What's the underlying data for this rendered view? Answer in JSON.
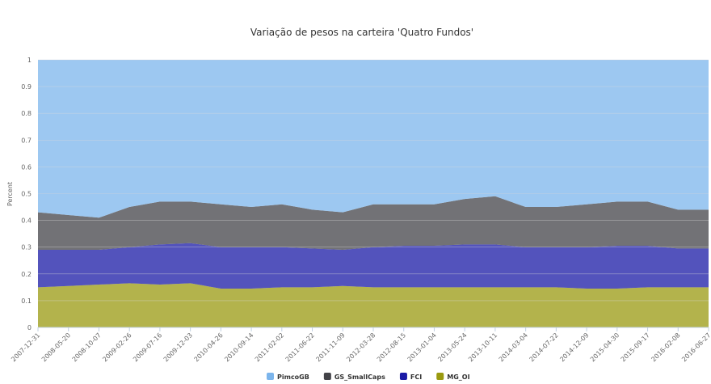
{
  "chart_data": {
    "type": "stacked-area",
    "title": "Variação de pesos na carteira 'Quatro Fundos'",
    "y_label": "Percent",
    "x": [
      "2007-12-31",
      "2008-05-20",
      "2008-10-07",
      "2009-02-26",
      "2009-07-16",
      "2009-12-03",
      "2010-04-26",
      "2010-09-14",
      "2011-02-02",
      "2011-06-22",
      "2011-11-09",
      "2012-03-28",
      "2012-08-15",
      "2013-01-04",
      "2013-05-24",
      "2013-10-11",
      "2014-03-04",
      "2014-07-22",
      "2014-12-09",
      "2015-04-30",
      "2015-09-17",
      "2016-02-08",
      "2016-06-27"
    ],
    "series": [
      {
        "name": "PimcoGB",
        "color": "#7cb5ec",
        "values": [
          0.57,
          0.58,
          0.59,
          0.55,
          0.53,
          0.53,
          0.54,
          0.55,
          0.54,
          0.56,
          0.57,
          0.54,
          0.54,
          0.54,
          0.52,
          0.51,
          0.55,
          0.55,
          0.54,
          0.53,
          0.53,
          0.56,
          0.56
        ]
      },
      {
        "name": "GS_SmallCaps",
        "color": "#434348",
        "values": [
          0.14,
          0.13,
          0.12,
          0.15,
          0.16,
          0.155,
          0.16,
          0.15,
          0.16,
          0.145,
          0.14,
          0.16,
          0.155,
          0.155,
          0.17,
          0.18,
          0.15,
          0.15,
          0.16,
          0.165,
          0.165,
          0.145,
          0.145
        ]
      },
      {
        "name": "FCI",
        "color": "#1a1aa6",
        "values": [
          0.14,
          0.135,
          0.13,
          0.135,
          0.15,
          0.15,
          0.155,
          0.155,
          0.15,
          0.145,
          0.135,
          0.15,
          0.155,
          0.155,
          0.16,
          0.16,
          0.15,
          0.15,
          0.155,
          0.16,
          0.155,
          0.145,
          0.145
        ]
      },
      {
        "name": "MG_OI",
        "color": "#9a9a10",
        "values": [
          0.15,
          0.155,
          0.16,
          0.165,
          0.16,
          0.165,
          0.145,
          0.145,
          0.15,
          0.15,
          0.155,
          0.15,
          0.15,
          0.15,
          0.15,
          0.15,
          0.15,
          0.15,
          0.145,
          0.145,
          0.15,
          0.15,
          0.15
        ]
      }
    ],
    "ylim": [
      0,
      1
    ],
    "yticks": [
      0,
      0.1,
      0.2,
      0.3,
      0.4,
      0.5,
      0.6,
      0.7,
      0.8,
      0.9,
      1
    ],
    "grid": true
  }
}
